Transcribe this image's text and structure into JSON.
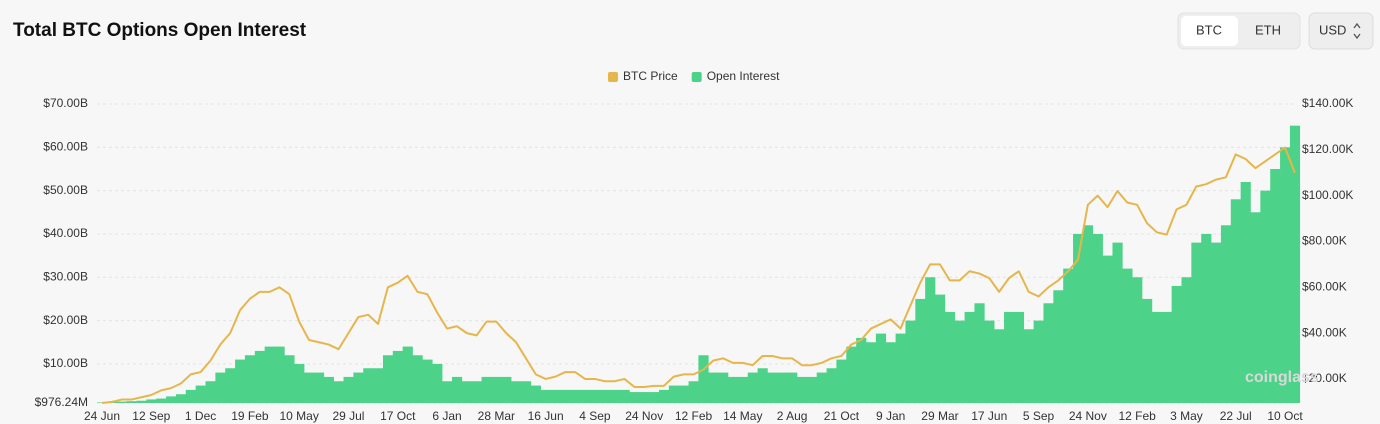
{
  "chart_data": {
    "type": "combo",
    "title": "Total BTC Options Open Interest",
    "categories": [
      "24 Jun",
      null,
      null,
      null,
      null,
      "12 Sep",
      null,
      null,
      null,
      null,
      "1 Dec",
      null,
      null,
      null,
      null,
      "19 Feb",
      null,
      null,
      null,
      null,
      "10 May",
      null,
      null,
      null,
      null,
      "29 Jul",
      null,
      null,
      null,
      null,
      "17 Oct",
      null,
      null,
      null,
      null,
      "6 Jan",
      null,
      null,
      null,
      null,
      "28 Mar",
      null,
      null,
      null,
      null,
      "16 Jun",
      null,
      null,
      null,
      null,
      "4 Sep",
      null,
      null,
      null,
      null,
      "24 Nov",
      null,
      null,
      null,
      null,
      "12 Feb",
      null,
      null,
      null,
      null,
      "14 May",
      null,
      null,
      null,
      null,
      "2 Aug",
      null,
      null,
      null,
      null,
      "21 Oct",
      null,
      null,
      null,
      null,
      "9 Jan",
      null,
      null,
      null,
      null,
      "29 Mar",
      null,
      null,
      null,
      null,
      "17 Jun",
      null,
      null,
      null,
      null,
      "5 Sep",
      null,
      null,
      null,
      null,
      "24 Nov",
      null,
      null,
      null,
      null,
      "12 Feb",
      null,
      null,
      null,
      null,
      "3 May",
      null,
      null,
      null,
      null,
      "22 Jul",
      null,
      null,
      null,
      null,
      "10 Oct",
      null
    ],
    "series": [
      {
        "name": "BTC Price",
        "type": "line",
        "axis": "y2",
        "color": "#e6b64c",
        "values": [
          9500,
          10000,
          11000,
          11000,
          12000,
          13000,
          15000,
          16000,
          18000,
          22000,
          23000,
          28000,
          35000,
          40000,
          50000,
          55000,
          58000,
          58000,
          60000,
          57000,
          45000,
          37000,
          36000,
          35000,
          33000,
          40000,
          47000,
          48000,
          44000,
          60000,
          62000,
          65000,
          58000,
          57000,
          49000,
          42000,
          43000,
          40000,
          39000,
          45000,
          45000,
          40000,
          36000,
          29000,
          22000,
          20000,
          21000,
          23000,
          23000,
          20000,
          20000,
          19000,
          19000,
          20000,
          16500,
          16500,
          17000,
          17000,
          21000,
          22000,
          22000,
          24000,
          28000,
          29000,
          27000,
          27000,
          26000,
          30000,
          30000,
          29000,
          29000,
          26000,
          26000,
          27000,
          29000,
          30000,
          35000,
          37000,
          42000,
          44000,
          46000,
          42000,
          52000,
          62000,
          70000,
          70000,
          63000,
          63000,
          67000,
          66000,
          64000,
          58000,
          64000,
          67000,
          58000,
          56000,
          60000,
          63000,
          67000,
          72000,
          96000,
          100000,
          95000,
          102000,
          97000,
          96000,
          88000,
          84000,
          83000,
          94000,
          96000,
          104000,
          105000,
          107000,
          108000,
          118000,
          116000,
          112000,
          115000,
          118000,
          121000,
          110000
        ]
      },
      {
        "name": "Open Interest",
        "type": "bar",
        "color": "#4dd289",
        "values": [
          1100000000.0,
          1200000000.0,
          1300000000.0,
          1400000000.0,
          1500000000.0,
          1800000000.0,
          2000000000.0,
          2500000000.0,
          3000000000.0,
          4000000000.0,
          5000000000.0,
          6000000000.0,
          8000000000.0,
          9000000000.0,
          11000000000.0,
          12000000000.0,
          13000000000.0,
          14000000000.0,
          14000000000.0,
          12000000000.0,
          10000000000.0,
          8000000000.0,
          8000000000.0,
          7000000000.0,
          6000000000.0,
          7000000000.0,
          8000000000.0,
          9000000000.0,
          9000000000.0,
          12000000000.0,
          13000000000.0,
          14000000000.0,
          12000000000.0,
          11000000000.0,
          10000000000.0,
          6000000000.0,
          7000000000.0,
          6000000000.0,
          6000000000.0,
          7000000000.0,
          7000000000.0,
          7000000000.0,
          6000000000.0,
          6000000000.0,
          5000000000.0,
          4000000000.0,
          4000000000.0,
          4000000000.0,
          4000000000.0,
          4000000000.0,
          4000000000.0,
          4000000000.0,
          4000000000.0,
          4000000000.0,
          3500000000.0,
          3500000000.0,
          3500000000.0,
          4000000000.0,
          5000000000.0,
          5000000000.0,
          6000000000.0,
          12000000000.0,
          8000000000.0,
          8000000000.0,
          7000000000.0,
          7000000000.0,
          8000000000.0,
          9000000000.0,
          8000000000.0,
          8000000000.0,
          8000000000.0,
          7000000000.0,
          7000000000.0,
          8000000000.0,
          9000000000.0,
          11000000000.0,
          14000000000.0,
          16000000000.0,
          15000000000.0,
          17000000000.0,
          15000000000.0,
          17000000000.0,
          20000000000.0,
          25000000000.0,
          30000000000.0,
          26000000000.0,
          22000000000.0,
          20000000000.0,
          22000000000.0,
          24000000000.0,
          20000000000.0,
          18000000000.0,
          22000000000.0,
          22000000000.0,
          18000000000.0,
          20000000000.0,
          24000000000.0,
          27000000000.0,
          32000000000.0,
          40000000000.0,
          42000000000.0,
          40000000000.0,
          35000000000.0,
          38000000000.0,
          32000000000.0,
          30000000000.0,
          25000000000.0,
          22000000000.0,
          22000000000.0,
          28000000000.0,
          30000000000.0,
          38000000000.0,
          40000000000.0,
          38000000000.0,
          42000000000.0,
          48000000000.0,
          52000000000.0,
          45000000000.0,
          50000000000.0,
          55000000000.0,
          60000000000.0,
          65000000000.0
        ]
      }
    ],
    "ylim": [
      976240000,
      70000000000
    ],
    "yticks": [
      {
        "value": 976240000,
        "label": "$976.24M"
      },
      {
        "value": 10000000000,
        "label": "$10.00B"
      },
      {
        "value": 20000000000,
        "label": "$20.00B"
      },
      {
        "value": 30000000000,
        "label": "$30.00B"
      },
      {
        "value": 40000000000,
        "label": "$40.00B"
      },
      {
        "value": 50000000000,
        "label": "$50.00B"
      },
      {
        "value": 60000000000,
        "label": "$60.00B"
      },
      {
        "value": 70000000000,
        "label": "$70.00B"
      }
    ],
    "y2lim": [
      9500,
      140000
    ],
    "y2ticks": [
      {
        "value": 20000,
        "label": "$20.00K"
      },
      {
        "value": 40000,
        "label": "$40.00K"
      },
      {
        "value": 60000,
        "label": "$60.00K"
      },
      {
        "value": 80000,
        "label": "$80.00K"
      },
      {
        "value": 100000,
        "label": "$100.00K"
      },
      {
        "value": 120000,
        "label": "$120.00K"
      },
      {
        "value": 140000,
        "label": "$140.00K"
      }
    ],
    "grid": true,
    "legend": "top",
    "watermark": "coinglass"
  },
  "controls": {
    "assets": [
      "BTC",
      "ETH"
    ],
    "currency": "USD"
  }
}
